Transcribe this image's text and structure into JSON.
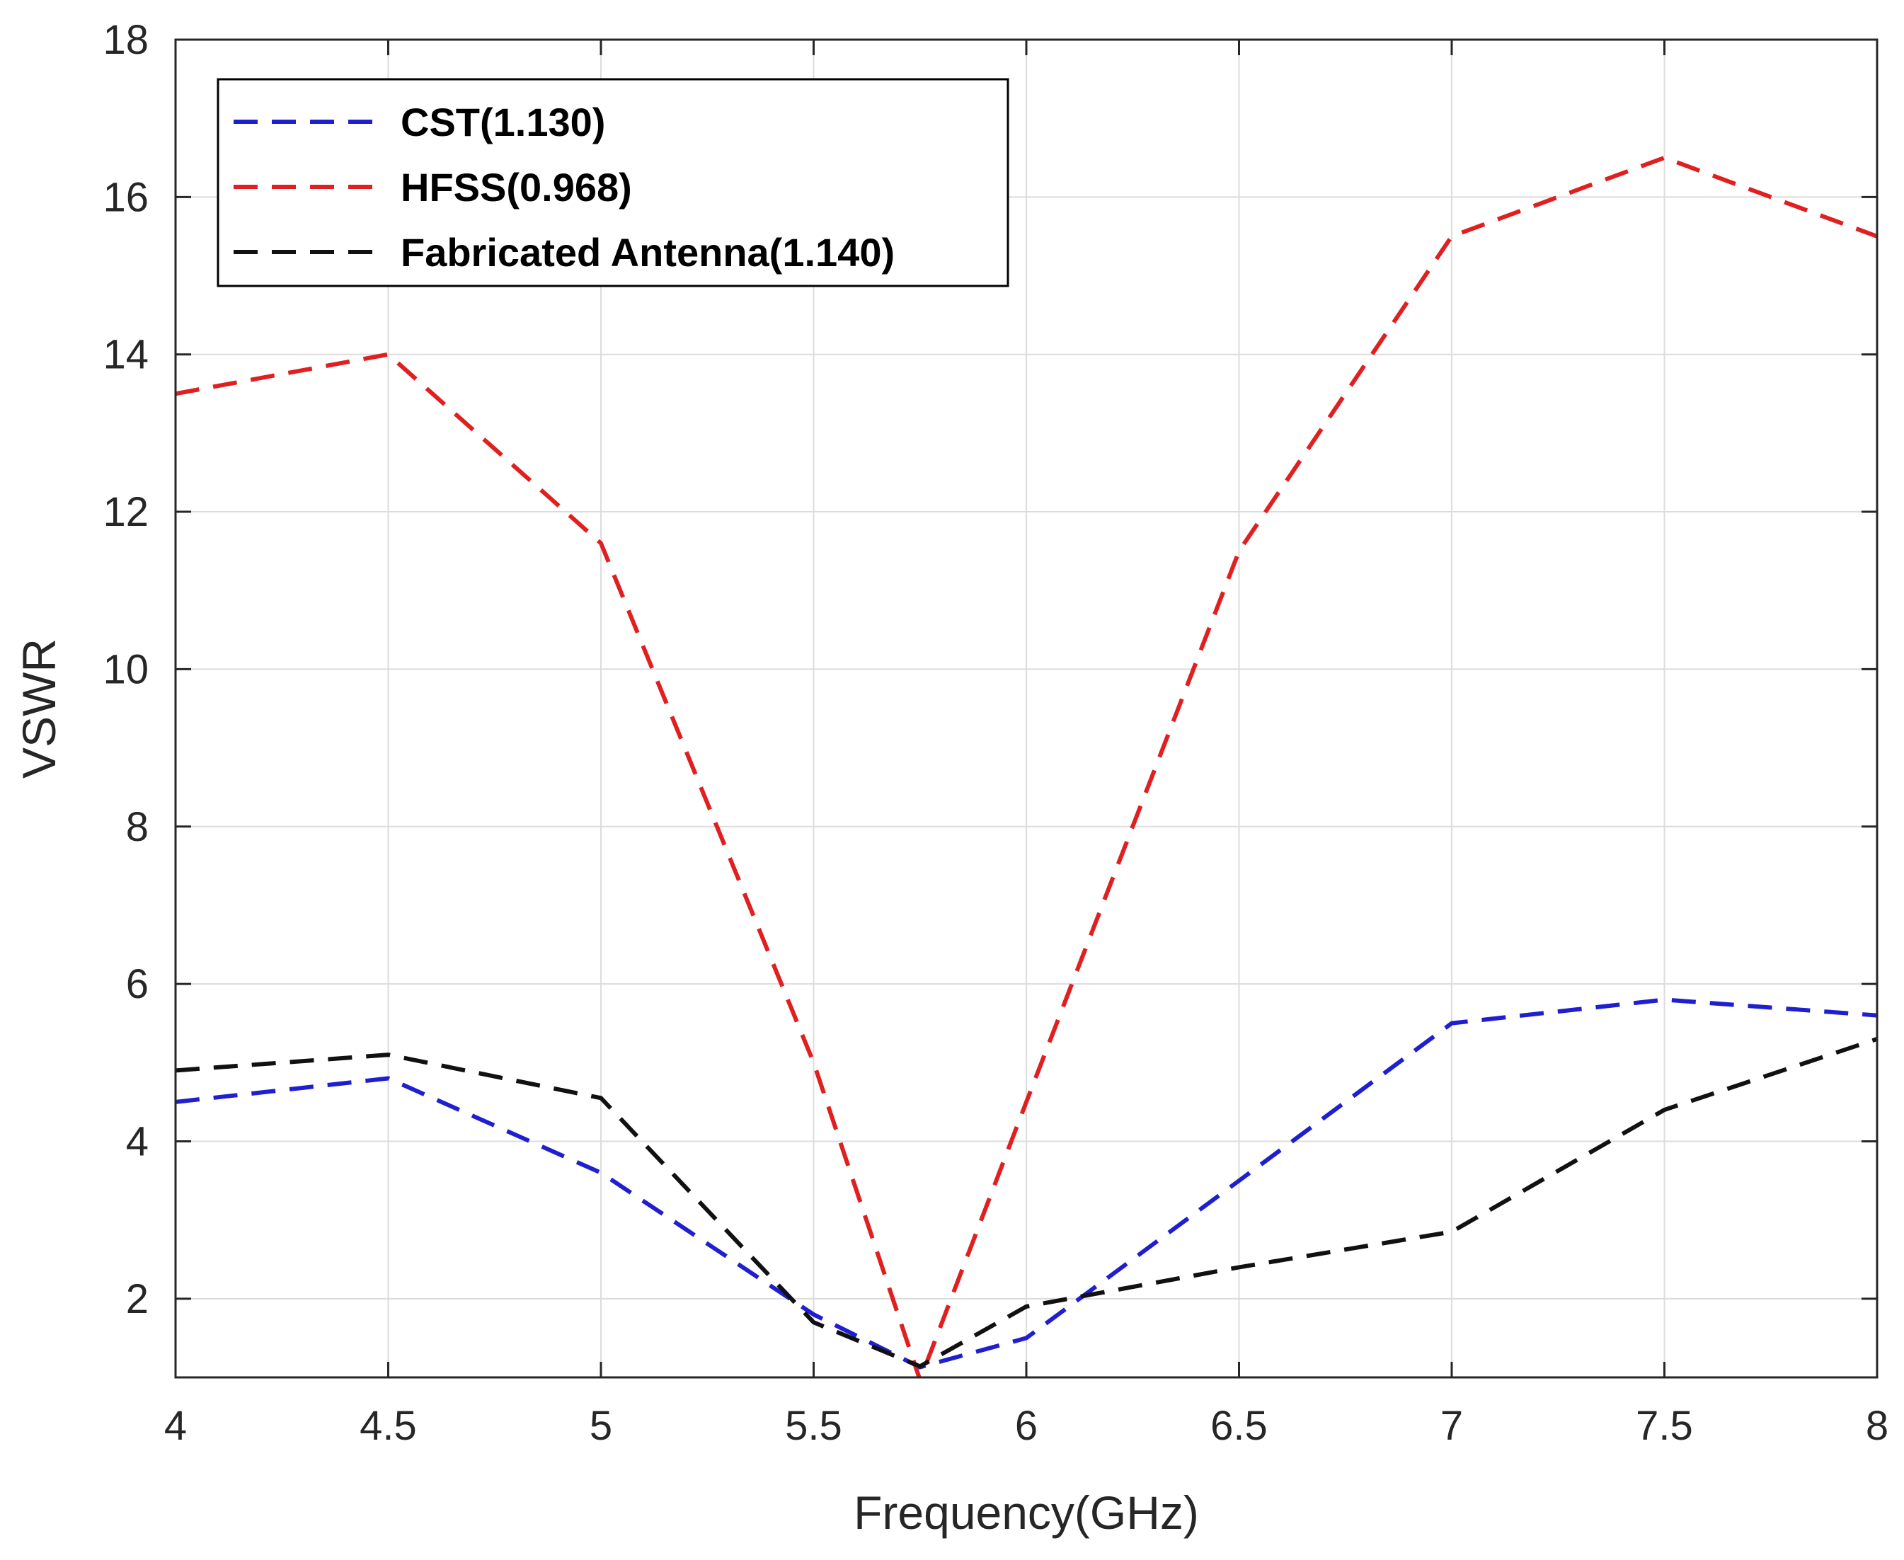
{
  "chart_data": {
    "type": "line",
    "title": "",
    "xlabel": "Frequency(GHz)",
    "ylabel": "VSWR",
    "xlim": [
      4,
      8
    ],
    "ylim": [
      1,
      18
    ],
    "xticks": [
      4,
      4.5,
      5,
      5.5,
      6,
      6.5,
      7,
      7.5,
      8
    ],
    "xtick_labels": [
      "4",
      "4.5",
      "5",
      "5.5",
      "6",
      "6.5",
      "7",
      "7.5",
      "8"
    ],
    "yticks": [
      2,
      4,
      6,
      8,
      10,
      12,
      14,
      16,
      18
    ],
    "ytick_labels": [
      "2",
      "4",
      "6",
      "8",
      "10",
      "12",
      "14",
      "16",
      "18"
    ],
    "grid": true,
    "legend_position": "top-left",
    "series": [
      {
        "name": "CST(1.130)",
        "color": "#1f1fcf",
        "line_style": "dashed",
        "x": [
          4,
          4.5,
          5,
          5.5,
          5.75,
          6,
          6.5,
          7,
          7.5,
          8
        ],
        "y": [
          4.5,
          4.8,
          3.6,
          1.8,
          1.13,
          1.5,
          3.5,
          5.5,
          5.8,
          5.6
        ]
      },
      {
        "name": "HFSS(0.968)",
        "color": "#e02020",
        "line_style": "dashed",
        "x": [
          4,
          4.5,
          5,
          5.5,
          5.75,
          6,
          6.5,
          7,
          7.5,
          8
        ],
        "y": [
          13.5,
          14,
          11.6,
          5,
          0.968,
          4.5,
          11.5,
          15.5,
          16.5,
          15.5
        ]
      },
      {
        "name": "Fabricated Antenna(1.140)",
        "color": "#111111",
        "line_style": "dashed",
        "x": [
          4,
          4.5,
          5,
          5.5,
          5.75,
          6,
          6.5,
          7,
          7.5,
          8
        ],
        "y": [
          4.9,
          5.1,
          4.55,
          1.7,
          1.14,
          1.9,
          2.4,
          2.85,
          4.4,
          5.3
        ]
      }
    ]
  }
}
